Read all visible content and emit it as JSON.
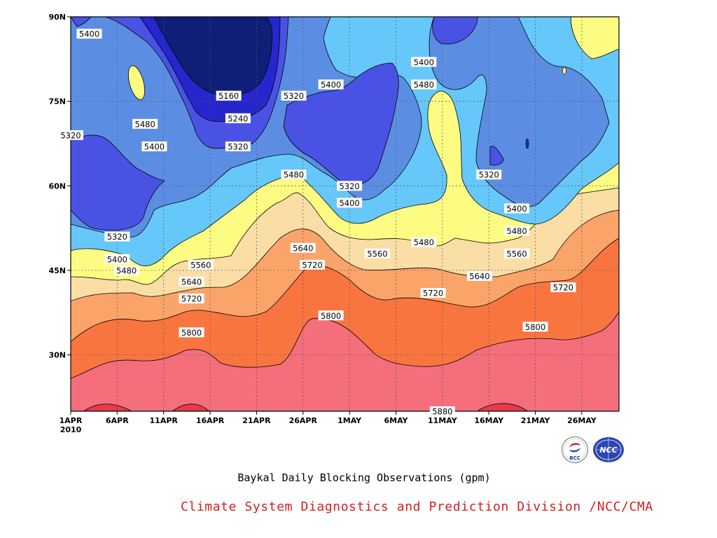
{
  "chart_data": {
    "type": "heatmap",
    "subtype": "filled-contour",
    "variable": "500hPa geopotential height",
    "units": "gpm",
    "x_axis": {
      "ticks": [
        "1APR",
        "6APR",
        "11APR",
        "16APR",
        "21APR",
        "26APR",
        "1MAY",
        "6MAY",
        "11MAY",
        "16MAY",
        "21MAY",
        "26MAY"
      ],
      "year_label": "2010",
      "range": [
        "2010-04-01",
        "2010-05-30"
      ]
    },
    "y_axis": {
      "ticks": [
        "30N",
        "45N",
        "60N",
        "75N",
        "90N"
      ],
      "range": [
        20,
        90
      ]
    },
    "grid": "dashed",
    "contour_levels": [
      5160,
      5240,
      5320,
      5400,
      5480,
      5560,
      5640,
      5720,
      5800,
      5880
    ],
    "fill_colors": {
      "below_5160": "#0f1f78",
      "5160_5240": "#2626cc",
      "5240_5320": "#4a52e6",
      "5320_5400": "#5b8ee3",
      "5400_5480": "#66c7fa",
      "5480_5560": "#fcfc82",
      "5560_5640": "#fadea5",
      "5640_5720": "#fba469",
      "5720_5800": "#f97540",
      "5800_5880": "#f46e7c",
      "above_5880": "#e8394d"
    },
    "contour_labels": [
      {
        "value": "5400",
        "date": "2010-04-03",
        "lat": 87
      },
      {
        "value": "5480",
        "date": "2010-04-09",
        "lat": 71
      },
      {
        "value": "5400",
        "date": "2010-04-10",
        "lat": 67
      },
      {
        "value": "5320",
        "date": "2010-04-01",
        "lat": 69
      },
      {
        "value": "5160",
        "date": "2010-04-18",
        "lat": 76
      },
      {
        "value": "5240",
        "date": "2010-04-19",
        "lat": 72
      },
      {
        "value": "5320",
        "date": "2010-04-19",
        "lat": 67
      },
      {
        "value": "5320",
        "date": "2010-04-25",
        "lat": 76
      },
      {
        "value": "5400",
        "date": "2010-04-29",
        "lat": 78
      },
      {
        "value": "5400",
        "date": "2010-05-09",
        "lat": 82
      },
      {
        "value": "5480",
        "date": "2010-05-09",
        "lat": 78
      },
      {
        "value": "5320",
        "date": "2010-05-16",
        "lat": 62
      },
      {
        "value": "5480",
        "date": "2010-04-25",
        "lat": 62
      },
      {
        "value": "5320",
        "date": "2010-05-01",
        "lat": 60
      },
      {
        "value": "5400",
        "date": "2010-05-01",
        "lat": 57
      },
      {
        "value": "5480",
        "date": "2010-05-09",
        "lat": 50
      },
      {
        "value": "5400",
        "date": "2010-05-19",
        "lat": 56
      },
      {
        "value": "5480",
        "date": "2010-05-19",
        "lat": 52
      },
      {
        "value": "5560",
        "date": "2010-05-19",
        "lat": 48
      },
      {
        "value": "5320",
        "date": "2010-04-06",
        "lat": 51
      },
      {
        "value": "5400",
        "date": "2010-04-06",
        "lat": 47
      },
      {
        "value": "5480",
        "date": "2010-04-07",
        "lat": 45
      },
      {
        "value": "5560",
        "date": "2010-04-15",
        "lat": 46
      },
      {
        "value": "5640",
        "date": "2010-04-14",
        "lat": 43
      },
      {
        "value": "5720",
        "date": "2010-04-14",
        "lat": 40
      },
      {
        "value": "5800",
        "date": "2010-04-14",
        "lat": 34
      },
      {
        "value": "5640",
        "date": "2010-04-26",
        "lat": 49
      },
      {
        "value": "5720",
        "date": "2010-04-27",
        "lat": 46
      },
      {
        "value": "5800",
        "date": "2010-04-29",
        "lat": 37
      },
      {
        "value": "5560",
        "date": "2010-05-04",
        "lat": 48
      },
      {
        "value": "5720",
        "date": "2010-05-10",
        "lat": 41
      },
      {
        "value": "5640",
        "date": "2010-05-15",
        "lat": 44
      },
      {
        "value": "5720",
        "date": "2010-05-24",
        "lat": 42
      },
      {
        "value": "5800",
        "date": "2010-05-21",
        "lat": 35
      },
      {
        "value": "5880",
        "date": "2010-05-11",
        "lat": 20
      }
    ]
  },
  "caption": "Baykal Daily Blocking Observations (gpm)",
  "credit": "Climate System Diagnostics and Prediction Division /NCC/CMA",
  "logos": [
    {
      "name": "bcc-logo",
      "text": "BCC"
    },
    {
      "name": "ncc-logo",
      "text": "NCC"
    }
  ]
}
